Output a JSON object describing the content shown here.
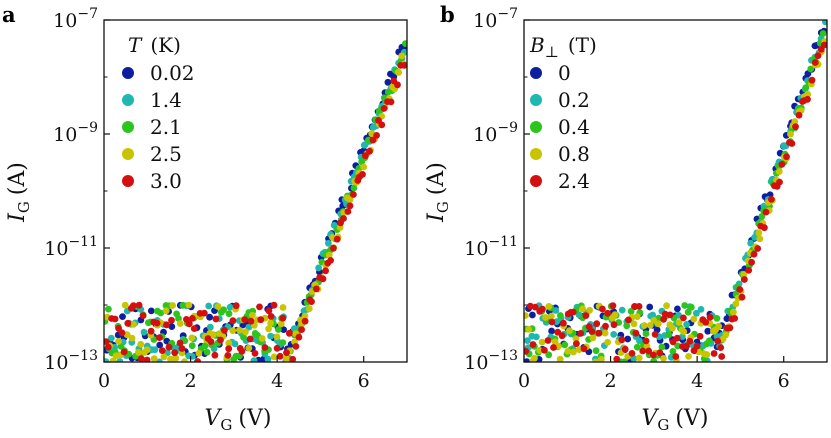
{
  "figure": {
    "colors": {
      "navy": "#0d1fa0",
      "teal": "#1fb8b0",
      "green": "#2ec41e",
      "olive": "#c8c400",
      "red": "#d40f0f"
    }
  },
  "chart_data": [
    {
      "type": "scatter",
      "panel": "a",
      "x_symbol": "V",
      "x_subscript": "G",
      "x_unit": "(V)",
      "y_symbol": "I",
      "y_subscript": "G",
      "y_unit": "(A)",
      "xlim": [
        0,
        7
      ],
      "ylim_log10": [
        -13,
        -7
      ],
      "y_scale": "log",
      "x_ticks": [
        "0",
        "2",
        "4",
        "6"
      ],
      "x_tick_values": [
        0,
        2,
        4,
        6
      ],
      "y_tick_exponents": [
        "−7",
        "−9",
        "−11",
        "−13"
      ],
      "y_tick_values_log10": [
        -7,
        -9,
        -11,
        -13
      ],
      "y_tick_base": "10",
      "legend_title_symbol": "T",
      "legend_title_unit": "(K)",
      "legend_position": "top-left",
      "turn_on_voltage": 4.3,
      "floor_log10": -12.8,
      "noise_band": [
        -13,
        -12.0
      ],
      "end_log10": -7.45,
      "series": [
        {
          "name": "0.02",
          "color": "#0d1fa0"
        },
        {
          "name": "1.4",
          "color": "#1fb8b0"
        },
        {
          "name": "2.1",
          "color": "#2ec41e"
        },
        {
          "name": "2.5",
          "color": "#c8c400"
        },
        {
          "name": "3.0",
          "color": "#d40f0f"
        }
      ]
    },
    {
      "type": "scatter",
      "panel": "b",
      "x_symbol": "V",
      "x_subscript": "G",
      "x_unit": "(V)",
      "y_symbol": "I",
      "y_subscript": "G",
      "y_unit": "(A)",
      "xlim": [
        0,
        7
      ],
      "ylim_log10": [
        -13,
        -7
      ],
      "y_scale": "log",
      "x_ticks": [
        "0",
        "2",
        "4",
        "6"
      ],
      "x_tick_values": [
        0,
        2,
        4,
        6
      ],
      "y_tick_exponents": [
        "−7",
        "−9",
        "−11",
        "−13"
      ],
      "y_tick_values_log10": [
        -7,
        -9,
        -11,
        -13
      ],
      "y_tick_base": "10",
      "legend_title_symbol": "B",
      "legend_title_sub": "⊥",
      "legend_title_unit": "(T)",
      "legend_position": "top-left",
      "turn_on_voltage": 4.5,
      "floor_log10": -12.8,
      "noise_band": [
        -13,
        -12.0
      ],
      "end_log10": -7.1,
      "series": [
        {
          "name": "0",
          "color": "#0d1fa0"
        },
        {
          "name": "0.2",
          "color": "#1fb8b0"
        },
        {
          "name": "0.4",
          "color": "#2ec41e"
        },
        {
          "name": "0.8",
          "color": "#c8c400"
        },
        {
          "name": "2.4",
          "color": "#d40f0f"
        }
      ]
    }
  ]
}
